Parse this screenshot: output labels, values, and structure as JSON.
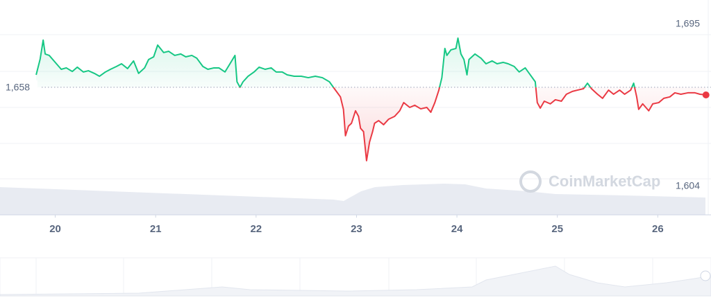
{
  "chart_data": {
    "type": "line",
    "x": [
      19.81,
      19.85,
      19.88,
      19.9,
      19.94,
      20.0,
      20.06,
      20.11,
      20.17,
      20.22,
      20.28,
      20.33,
      20.39,
      20.44,
      20.5,
      20.55,
      20.61,
      20.66,
      20.72,
      20.78,
      20.83,
      20.89,
      20.93,
      20.98,
      21.02,
      21.08,
      21.13,
      21.19,
      21.25,
      21.3,
      21.36,
      21.41,
      21.47,
      21.52,
      21.58,
      21.63,
      21.69,
      21.74,
      21.79,
      21.81,
      21.84,
      21.87,
      21.92,
      21.98,
      22.03,
      22.09,
      22.15,
      22.2,
      22.26,
      22.31,
      22.38,
      22.45,
      22.52,
      22.59,
      22.66,
      22.73,
      22.78,
      22.84,
      22.87,
      22.89,
      22.92,
      22.95,
      22.99,
      23.02,
      23.04,
      23.07,
      23.1,
      23.13,
      23.16,
      23.18,
      23.22,
      23.27,
      23.32,
      23.38,
      23.43,
      23.47,
      23.53,
      23.58,
      23.64,
      23.7,
      23.74,
      23.78,
      23.82,
      23.85,
      23.88,
      23.9,
      23.94,
      23.99,
      24.01,
      24.04,
      24.07,
      24.1,
      24.12,
      24.18,
      24.24,
      24.29,
      24.35,
      24.4,
      24.46,
      24.51,
      24.57,
      24.62,
      24.68,
      24.73,
      24.78,
      24.8,
      24.83,
      24.87,
      24.93,
      24.98,
      25.04,
      25.09,
      25.15,
      25.2,
      25.26,
      25.3,
      25.34,
      25.4,
      25.45,
      25.51,
      25.56,
      25.62,
      25.67,
      25.73,
      25.76,
      25.79,
      25.81,
      25.85,
      25.91,
      25.95,
      26.01,
      26.06,
      26.12,
      26.17,
      26.23,
      26.3,
      26.37,
      26.42,
      26.48
    ],
    "values": [
      1665.0,
      1673.9,
      1684.5,
      1676.7,
      1675.9,
      1672.0,
      1668.1,
      1668.9,
      1666.9,
      1669.3,
      1666.6,
      1667.3,
      1665.8,
      1664.2,
      1666.6,
      1668.1,
      1669.7,
      1671.2,
      1668.5,
      1672.8,
      1665.8,
      1668.9,
      1673.6,
      1675.1,
      1681.7,
      1677.5,
      1678.2,
      1675.9,
      1676.7,
      1675.1,
      1675.9,
      1674.3,
      1669.7,
      1668.1,
      1668.9,
      1668.9,
      1666.6,
      1671.2,
      1675.9,
      1661.1,
      1658.0,
      1661.1,
      1664.2,
      1666.6,
      1669.3,
      1668.1,
      1668.9,
      1666.6,
      1666.6,
      1665.0,
      1664.2,
      1664.2,
      1663.4,
      1664.2,
      1663.4,
      1661.1,
      1657.2,
      1652.6,
      1645.6,
      1630.8,
      1636.2,
      1637.8,
      1644.8,
      1641.7,
      1635.0,
      1633.1,
      1616.8,
      1627.3,
      1633.1,
      1637.8,
      1639.3,
      1637.0,
      1640.1,
      1641.7,
      1644.8,
      1649.4,
      1646.7,
      1647.9,
      1645.9,
      1646.7,
      1644.0,
      1649.4,
      1656.4,
      1663.4,
      1679.8,
      1675.9,
      1679.0,
      1679.8,
      1685.6,
      1676.7,
      1673.6,
      1665.0,
      1673.6,
      1676.7,
      1674.3,
      1671.2,
      1672.8,
      1671.2,
      1672.0,
      1671.2,
      1669.7,
      1666.6,
      1668.9,
      1665.0,
      1661.1,
      1649.4,
      1646.3,
      1650.2,
      1648.7,
      1651.0,
      1650.2,
      1654.1,
      1655.7,
      1656.4,
      1657.2,
      1660.3,
      1657.2,
      1654.1,
      1651.8,
      1656.4,
      1654.1,
      1656.4,
      1654.1,
      1656.4,
      1660.3,
      1652.6,
      1645.6,
      1648.7,
      1644.8,
      1648.7,
      1649.4,
      1651.8,
      1652.6,
      1654.9,
      1654.1,
      1654.9,
      1654.9,
      1654.1,
      1653.7
    ],
    "xlim": [
      19.45,
      26.53
    ],
    "xticks": [
      20,
      21,
      22,
      23,
      24,
      25,
      26
    ],
    "ylim": [
      1586.4,
      1707
    ],
    "yticks": [
      {
        "value": 1604,
        "label": "1,604"
      },
      {
        "value": 1695,
        "label": "1,695"
      }
    ],
    "baseline": {
      "value": 1658,
      "label": "1,658"
    },
    "up_color": "#16c784",
    "down_color": "#ea3943",
    "watermark": "CoinMarketCap"
  }
}
